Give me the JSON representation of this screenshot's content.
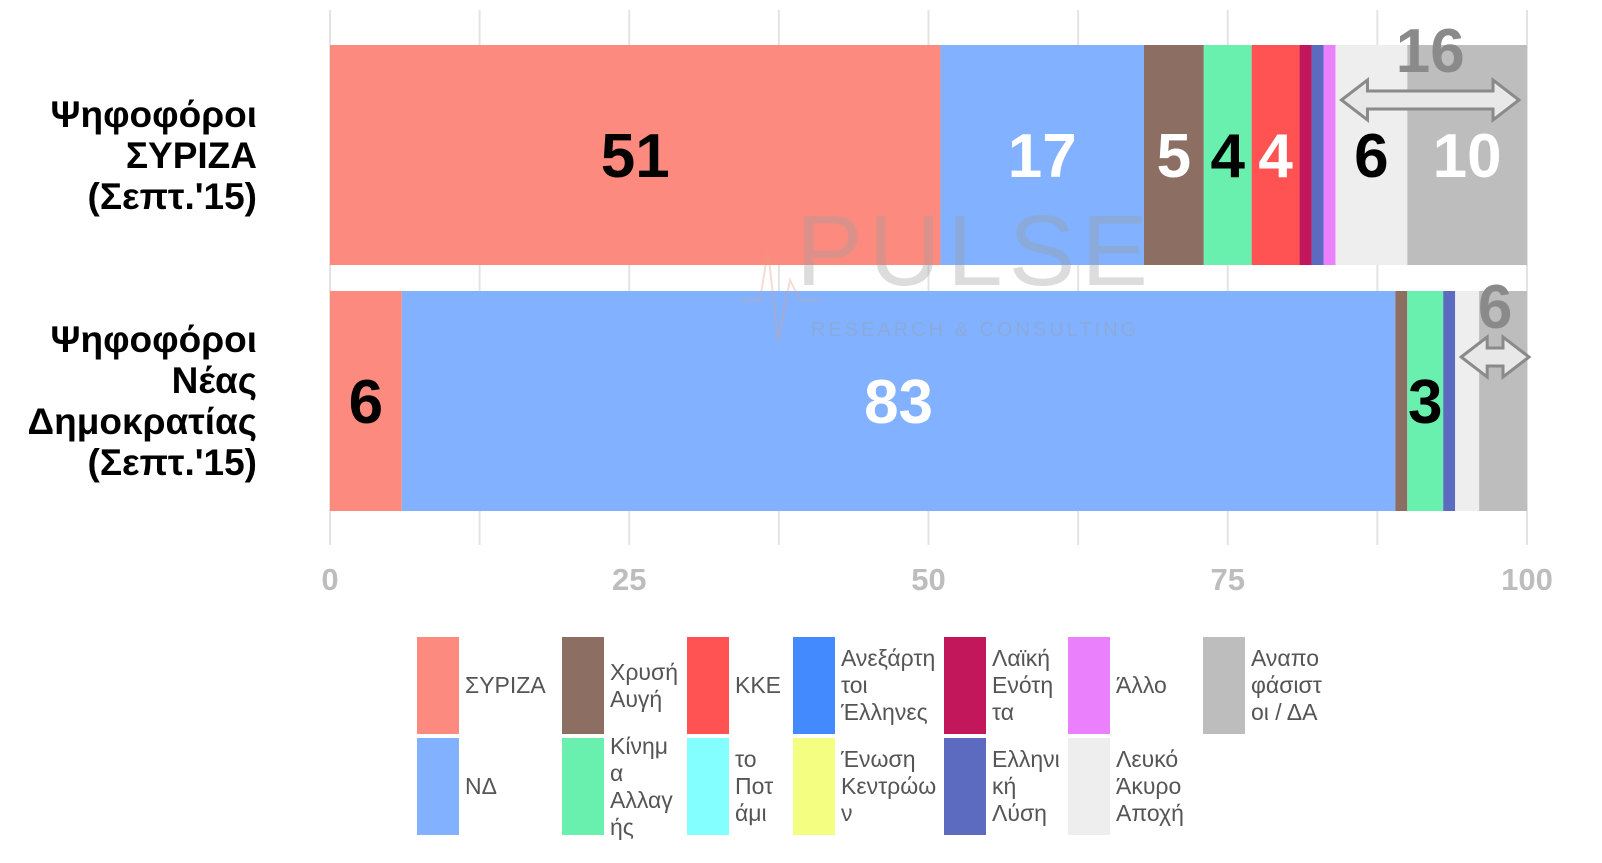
{
  "chart_data": {
    "type": "stacked-bar-horizontal",
    "categories": [
      "Ψηφοφόροι\nΣΥΡΙΖΑ\n(Σεπτ.'15)",
      "Ψηφοφόροι\nΝέας\nΔημοκρατίας\n(Σεπτ.'15)"
    ],
    "series": [
      {
        "name": "ΣΥΡΙΖΑ",
        "color": "#fd8a7e",
        "label_color": "#000000",
        "values": [
          51,
          6
        ],
        "value_labels": [
          "51",
          "6"
        ]
      },
      {
        "name": "ΝΔ",
        "color": "#82b1ff",
        "label_color": "#ffffff",
        "values": [
          17,
          83
        ],
        "value_labels": [
          "17",
          "83"
        ]
      },
      {
        "name": "Χρυσή Αυγή",
        "color": "#8d6e63",
        "label_color": "#ffffff",
        "values": [
          5,
          1
        ],
        "value_labels": [
          "5",
          null
        ]
      },
      {
        "name": "Κίνημα Αλλαγής",
        "color": "#69f0ae",
        "label_color": "#000000",
        "values": [
          4,
          3
        ],
        "value_labels": [
          "4",
          "3"
        ]
      },
      {
        "name": "ΚΚΕ",
        "color": "#ff5252",
        "label_color": "#ffffff",
        "values": [
          4,
          0
        ],
        "value_labels": [
          "4",
          null
        ]
      },
      {
        "name": "το Ποτάμι",
        "color": "#84ffff",
        "label_color": "#000000",
        "values": [
          0,
          0
        ],
        "value_labels": [
          null,
          null
        ]
      },
      {
        "name": "Ανεξάρτητοι Έλληνες",
        "color": "#448aff",
        "label_color": "#ffffff",
        "values": [
          0,
          0
        ],
        "value_labels": [
          null,
          null
        ]
      },
      {
        "name": "Ένωση Κεντρώων",
        "color": "#f4ff81",
        "label_color": "#000000",
        "values": [
          0,
          0
        ],
        "value_labels": [
          null,
          null
        ]
      },
      {
        "name": "Λαϊκή Ενότητα",
        "color": "#c2185b",
        "label_color": "#ffffff",
        "values": [
          1,
          0
        ],
        "value_labels": [
          null,
          null
        ]
      },
      {
        "name": "Ελληνική Λύση",
        "color": "#5c6bc0",
        "label_color": "#ffffff",
        "values": [
          1,
          1
        ],
        "value_labels": [
          null,
          null
        ]
      },
      {
        "name": "Άλλο",
        "color": "#ea80fc",
        "label_color": "#000000",
        "values": [
          1,
          0
        ],
        "value_labels": [
          null,
          null
        ]
      },
      {
        "name": "Λευκό Άκυρο Αποχή",
        "color": "#eeeeee",
        "label_color": "#000000",
        "values": [
          6,
          2
        ],
        "value_labels": [
          "6",
          null
        ]
      },
      {
        "name": "Αναποφάσιστοι / ΔΑ",
        "color": "#bdbdbd",
        "label_color": "#ffffff",
        "values": [
          10,
          4
        ],
        "value_labels": [
          "10",
          null
        ]
      }
    ],
    "annotations": [
      16,
      6
    ],
    "xlim": [
      0,
      100
    ],
    "xticks": [
      0,
      25,
      50,
      75,
      100
    ],
    "grid": true,
    "watermark_title": "PULSE",
    "watermark_subtitle": "RESEARCH & CONSULTING"
  }
}
